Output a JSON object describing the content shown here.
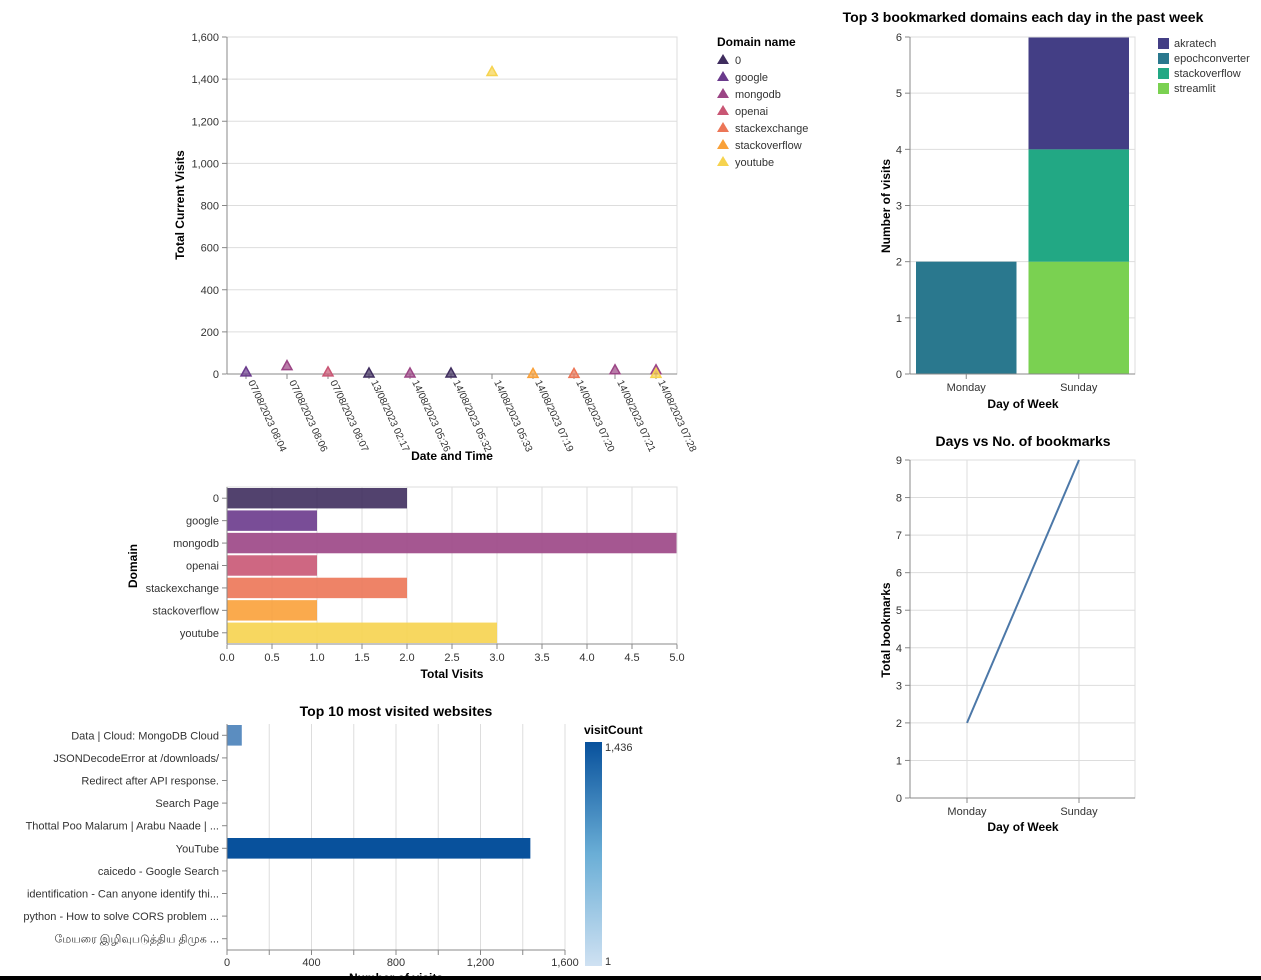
{
  "chart_data": [
    {
      "type": "scatter",
      "mark": "triangle",
      "title": "",
      "xlabel": "Date and Time",
      "ylabel": "Total Current Visits",
      "ylim": [
        0,
        1600
      ],
      "yticks": [
        "0",
        "200",
        "400",
        "600",
        "800",
        "1,000",
        "1,200",
        "1,400",
        "1,600"
      ],
      "categories": [
        "07/08/2023 08:04",
        "07/08/2023 08:06",
        "07/08/2023 08:07",
        "13/08/2023 02:17",
        "14/08/2023 05:26",
        "14/08/2023 05:32",
        "14/08/2023 05:33",
        "14/08/2023 07:19",
        "14/08/2023 07:20",
        "14/08/2023 07:21",
        "14/08/2023 07:28"
      ],
      "points": [
        {
          "x": "07/08/2023 08:04",
          "y": 10,
          "domain": "google"
        },
        {
          "x": "07/08/2023 08:06",
          "y": 40,
          "domain": "mongodb"
        },
        {
          "x": "07/08/2023 08:07",
          "y": 10,
          "domain": "openai"
        },
        {
          "x": "13/08/2023 02:17",
          "y": 5,
          "domain": "0"
        },
        {
          "x": "14/08/2023 05:26",
          "y": 5,
          "domain": "mongodb"
        },
        {
          "x": "14/08/2023 05:32",
          "y": 5,
          "domain": "0"
        },
        {
          "x": "14/08/2023 05:33",
          "y": 1436,
          "domain": "youtube"
        },
        {
          "x": "14/08/2023 07:19",
          "y": 3,
          "domain": "stackoverflow"
        },
        {
          "x": "14/08/2023 07:20",
          "y": 3,
          "domain": "stackexchange"
        },
        {
          "x": "14/08/2023 07:21",
          "y": 20,
          "domain": "mongodb"
        },
        {
          "x": "14/08/2023 07:28",
          "y": 20,
          "domain": "mongodb"
        },
        {
          "x": "14/08/2023 07:28",
          "y": 3,
          "domain": "youtube"
        }
      ],
      "legend": {
        "title": "Domain name",
        "placement": "right",
        "entries": [
          "0",
          "google",
          "mongodb",
          "openai",
          "stackexchange",
          "stackoverflow",
          "youtube"
        ],
        "colors": [
          "#3f2d5e",
          "#6a3a8c",
          "#9b4585",
          "#c95674",
          "#ec7657",
          "#f9a13a",
          "#f6d34f"
        ]
      },
      "grid": true
    },
    {
      "type": "bar",
      "orientation": "horizontal",
      "xlabel": "Total Visits",
      "ylabel": "Domain",
      "xlim": [
        0,
        5
      ],
      "xticks": [
        "0.0",
        "0.5",
        "1.0",
        "1.5",
        "2.0",
        "2.5",
        "3.0",
        "3.5",
        "4.0",
        "4.5",
        "5.0"
      ],
      "categories": [
        "0",
        "google",
        "mongodb",
        "openai",
        "stackexchange",
        "stackoverflow",
        "youtube"
      ],
      "values": [
        2,
        1,
        5,
        1,
        2,
        1,
        3
      ],
      "colors": [
        "#3f2d5e",
        "#6a3a8c",
        "#9b4585",
        "#c95674",
        "#ec7657",
        "#f9a13a",
        "#f6d34f"
      ],
      "grid": true
    },
    {
      "type": "bar",
      "orientation": "horizontal",
      "title": "Top 10 most visited websites",
      "xlabel": "Number of visits",
      "xlim": [
        0,
        1600
      ],
      "xticks": [
        "0",
        "400",
        "800",
        "1,200",
        "1,600"
      ],
      "categories": [
        "Data | Cloud: MongoDB Cloud",
        "JSONDecodeError at /downloads/",
        "Redirect after API response.",
        "Search Page",
        "Thottal Poo Malarum | Arabu Naade | ...",
        "YouTube",
        "caicedo - Google Search",
        "identification - Can anyone identify thi...",
        "python - How to solve CORS problem ...",
        "மேயரை இழிவுபடுத்திய திமுக ..."
      ],
      "values": [
        70,
        2,
        3,
        2,
        1,
        1436,
        1,
        1,
        1,
        1
      ],
      "legend": {
        "title": "visitCount",
        "type": "gradient",
        "max_label": "1,436",
        "min_label": "1",
        "colors": [
          "#cfe1f2",
          "#08519c"
        ]
      },
      "grid": true
    },
    {
      "type": "bar",
      "stacked": true,
      "title": "Top 3 bookmarked domains each day in the past week",
      "xlabel": "Day of Week",
      "ylabel": "Number of visits",
      "ylim": [
        0,
        6
      ],
      "yticks": [
        "0",
        "1",
        "2",
        "3",
        "4",
        "5",
        "6"
      ],
      "categories": [
        "Monday",
        "Sunday"
      ],
      "series": [
        {
          "name": "akratech",
          "values": [
            0,
            2
          ],
          "color": "#433e85"
        },
        {
          "name": "epochconverter",
          "values": [
            2,
            0
          ],
          "color": "#2a788e"
        },
        {
          "name": "stackoverflow",
          "values": [
            0,
            2
          ],
          "color": "#22a884"
        },
        {
          "name": "streamlit",
          "values": [
            0,
            2
          ],
          "color": "#7ad151"
        }
      ],
      "stack_order": [
        "streamlit",
        "stackoverflow",
        "epochconverter",
        "akratech"
      ],
      "legend_placement": "right",
      "grid": true
    },
    {
      "type": "line",
      "title": "Days vs No. of bookmarks",
      "xlabel": "Day of Week",
      "ylabel": "Total bookmarks",
      "ylim": [
        0,
        9
      ],
      "yticks": [
        "0",
        "1",
        "2",
        "3",
        "4",
        "5",
        "6",
        "7",
        "8",
        "9"
      ],
      "categories": [
        "Monday",
        "Sunday"
      ],
      "values": [
        2,
        9
      ],
      "color": "#4c78a8",
      "grid": true
    }
  ]
}
